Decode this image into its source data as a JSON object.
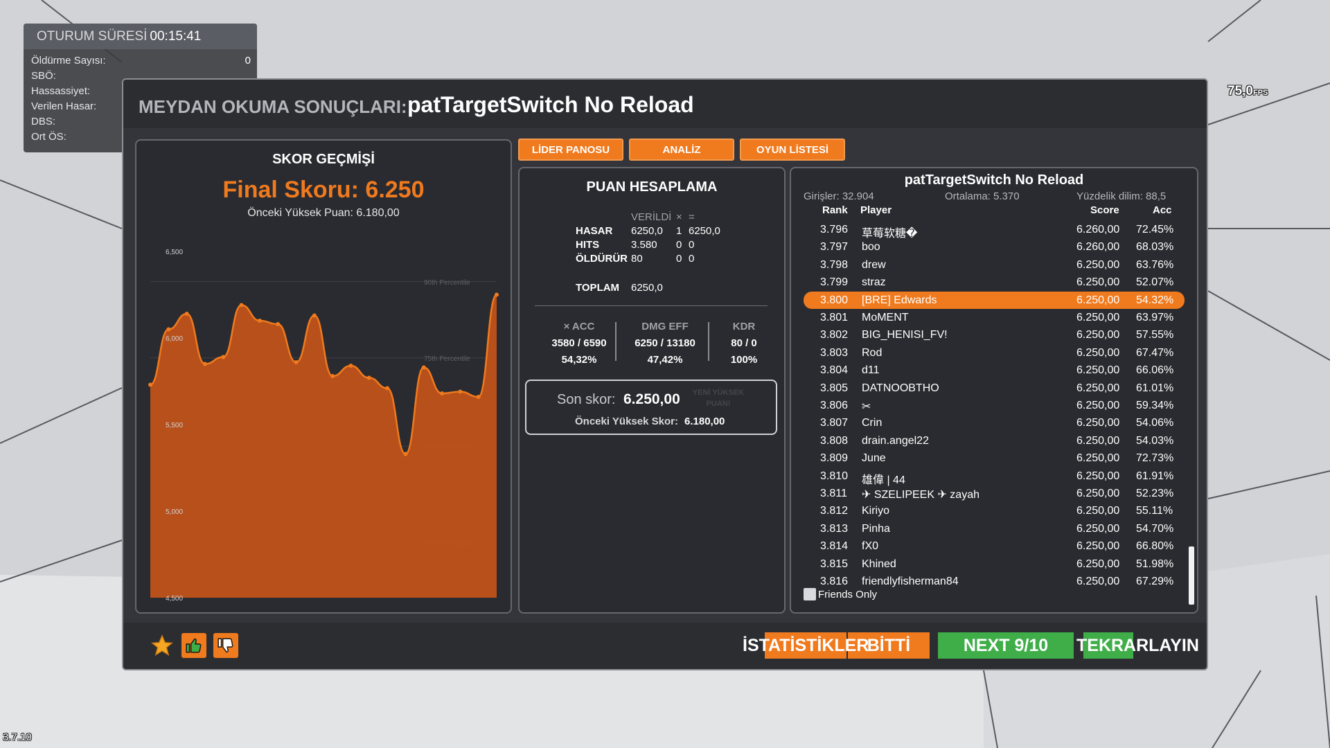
{
  "session": {
    "title": "OTURUM SÜRESİ",
    "time": "00:15:41",
    "rows": [
      {
        "label": "Öldürme Sayısı:",
        "value": "0"
      },
      {
        "label": "SBÖ:",
        "value": ""
      },
      {
        "label": "Hassassiyet:",
        "value": ""
      },
      {
        "label": "Verilen Hasar:",
        "value": ""
      },
      {
        "label": "DBS:",
        "value": ""
      },
      {
        "label": "Ort ÖS:",
        "value": ""
      }
    ]
  },
  "fps": {
    "value": "75,0",
    "unit": "FPS"
  },
  "version": "3.7.10",
  "modal": {
    "title_prefix": "MEYDAN OKUMA SONUÇLARI:",
    "title_name": "patTargetSwitch No Reload"
  },
  "history": {
    "title": "SKOR GEÇMİŞİ",
    "final": "Final Skoru: 6.250",
    "previous": "Önceki Yüksek Puan: 6.180,00"
  },
  "chart_data": {
    "type": "area",
    "title": "",
    "ylim": [
      4500,
      6500
    ],
    "yticks": [
      "6,500",
      "6,000",
      "5,500",
      "5,000",
      "4,500"
    ],
    "ytick_values": [
      6500,
      6000,
      5500,
      5000,
      4500
    ],
    "percentiles": [
      {
        "label": "90th Percentile",
        "value": 6325
      },
      {
        "label": "75th Percentile",
        "value": 5885
      },
      {
        "label": "50th Percentile",
        "value": 5375
      },
      {
        "label": "25th Percentile",
        "value": 4815
      }
    ],
    "series": [
      {
        "values": [
          5730,
          6050,
          6140,
          5850,
          5890,
          6190,
          6100,
          6080,
          5860,
          6130,
          5780,
          5840,
          5770,
          5710,
          5330,
          5830,
          5680,
          5690,
          5660,
          6250
        ],
        "color": "#c0521a"
      }
    ],
    "grid": true
  },
  "tabs": {
    "leaderboard": "LİDER PANOSU",
    "analysis": "ANALİZ",
    "playlist": "OYUN LİSTESİ"
  },
  "calc": {
    "title": "PUAN HESAPLAMA",
    "header_given": "VERİLDİ",
    "header_mult": "×",
    "header_eq": "=",
    "rows": [
      {
        "label": "HASAR",
        "given": "6250,0",
        "mult": "1",
        "result": "6250,0"
      },
      {
        "label": "HITS",
        "given": "3.580",
        "mult": "0",
        "result": "0"
      },
      {
        "label": "ÖLDÜRÜR",
        "given": "80",
        "mult": "0",
        "result": "0"
      }
    ],
    "total_label": "TOPLAM",
    "total_value": "6250,0",
    "stats": [
      {
        "label": "× ACC",
        "ratio": "3580 / 6590",
        "pct": "54,32%"
      },
      {
        "label": "DMG EFF",
        "ratio": "6250 / 13180",
        "pct": "47,42%"
      },
      {
        "label": "KDR",
        "ratio": "80 / 0",
        "pct": "100%"
      }
    ],
    "last_label": "Son skor:",
    "last_value": "6.250,00",
    "new_high": "YENİ YÜKSEK PUAN!",
    "prev_label": "Önceki Yüksek Skor:",
    "prev_value": "6.180,00"
  },
  "board": {
    "title": "patTargetSwitch No Reload",
    "entries": "Girişler: 32.904",
    "average": "Ortalama: 5.370",
    "percentile": "Yüzdelik dilim: 88,5",
    "columns": {
      "rank": "Rank",
      "player": "Player",
      "score": "Score",
      "acc": "Acc"
    },
    "rows": [
      {
        "rank": "3.796",
        "player": "草莓软糖�",
        "score": "6.260,00",
        "acc": "72.45%"
      },
      {
        "rank": "3.797",
        "player": "boo",
        "score": "6.260,00",
        "acc": "68.03%"
      },
      {
        "rank": "3.798",
        "player": "drew",
        "score": "6.250,00",
        "acc": "63.76%"
      },
      {
        "rank": "3.799",
        "player": "straz",
        "score": "6.250,00",
        "acc": "52.07%"
      },
      {
        "rank": "3.800",
        "player": "[BRE] Edwards",
        "score": "6.250,00",
        "acc": "54.32%"
      },
      {
        "rank": "3.801",
        "player": "MoMENT",
        "score": "6.250,00",
        "acc": "63.97%"
      },
      {
        "rank": "3.802",
        "player": "BIG_HENISI_FV!",
        "score": "6.250,00",
        "acc": "57.55%"
      },
      {
        "rank": "3.803",
        "player": "Rod",
        "score": "6.250,00",
        "acc": "67.47%"
      },
      {
        "rank": "3.804",
        "player": "d11",
        "score": "6.250,00",
        "acc": "66.06%"
      },
      {
        "rank": "3.805",
        "player": "DATNOOBTHO",
        "score": "6.250,00",
        "acc": "61.01%"
      },
      {
        "rank": "3.806",
        "player": "✂",
        "score": "6.250,00",
        "acc": "59.34%"
      },
      {
        "rank": "3.807",
        "player": "Crin",
        "score": "6.250,00",
        "acc": "54.06%"
      },
      {
        "rank": "3.808",
        "player": "drain.angel22",
        "score": "6.250,00",
        "acc": "54.03%"
      },
      {
        "rank": "3.809",
        "player": "June",
        "score": "6.250,00",
        "acc": "72.73%"
      },
      {
        "rank": "3.810",
        "player": "雄偉 | 44",
        "score": "6.250,00",
        "acc": "61.91%"
      },
      {
        "rank": "3.811",
        "player": "✈ SZELIPEEK ✈ zayah",
        "score": "6.250,00",
        "acc": "52.23%"
      },
      {
        "rank": "3.812",
        "player": "Kiriyo",
        "score": "6.250,00",
        "acc": "55.11%"
      },
      {
        "rank": "3.813",
        "player": "Pinha",
        "score": "6.250,00",
        "acc": "54.70%"
      },
      {
        "rank": "3.814",
        "player": "fX0",
        "score": "6.250,00",
        "acc": "66.80%"
      },
      {
        "rank": "3.815",
        "player": "Khined",
        "score": "6.250,00",
        "acc": "51.98%"
      },
      {
        "rank": "3.816",
        "player": "friendlyfisherman84",
        "score": "6.250,00",
        "acc": "67.29%"
      }
    ],
    "highlight_rank": "3.800",
    "friends_only": "Friends Only"
  },
  "footer": {
    "stats": "İSTATİSTİKLER",
    "done": "BİTTİ",
    "next": "NEXT 9/10",
    "retry": "TEKRARLAYIN",
    "icons": [
      "star-icon",
      "thumbs-up-icon",
      "thumbs-down-icon"
    ]
  },
  "colors": {
    "accent": "#f07a1e",
    "green": "#3fae49",
    "panel": "#2a2b30"
  }
}
